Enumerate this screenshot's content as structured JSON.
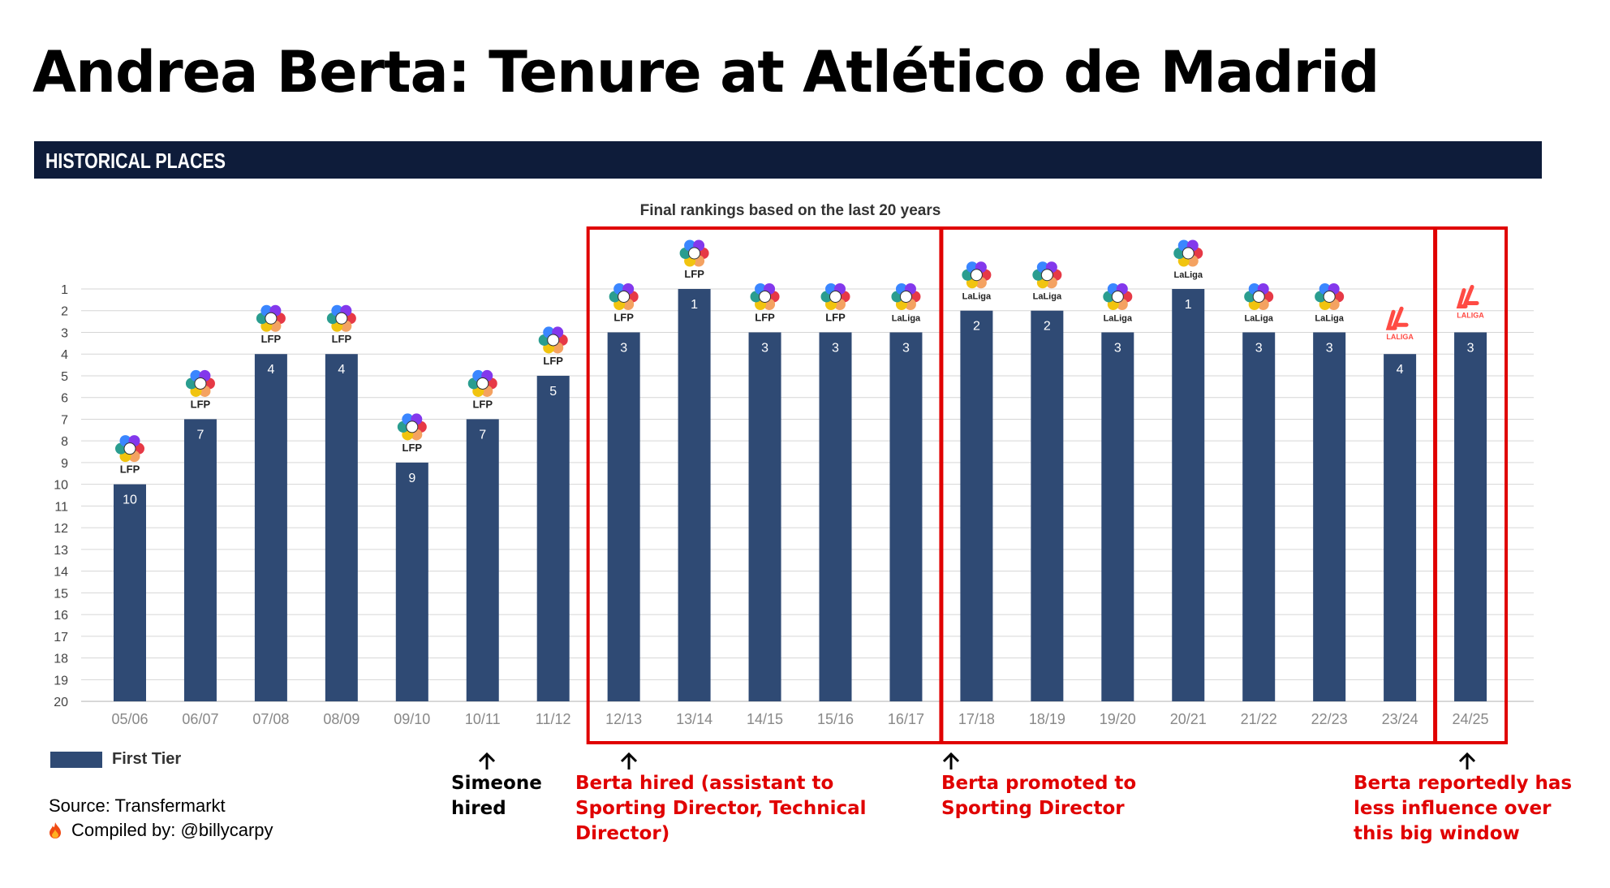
{
  "title": "Andrea Berta: Tenure at Atlético de Madrid",
  "header": "HISTORICAL PLACES",
  "chart_data": {
    "type": "bar",
    "title": "Final rankings based on the last 20 years",
    "categories": [
      "05/06",
      "06/07",
      "07/08",
      "08/09",
      "09/10",
      "10/11",
      "11/12",
      "12/13",
      "13/14",
      "14/15",
      "15/16",
      "16/17",
      "17/18",
      "18/19",
      "19/20",
      "20/21",
      "21/22",
      "22/23",
      "23/24",
      "24/25"
    ],
    "series": [
      {
        "name": "First Tier",
        "values": [
          10,
          7,
          4,
          4,
          9,
          7,
          5,
          3,
          1,
          3,
          3,
          3,
          2,
          2,
          3,
          1,
          3,
          3,
          4,
          3
        ]
      }
    ],
    "logos": [
      "LFP",
      "LFP",
      "LFP",
      "LFP",
      "LFP",
      "LFP",
      "LFP",
      "LFP",
      "LFP",
      "LFP",
      "LFP",
      "LaLiga",
      "LaLiga",
      "LaLiga",
      "LaLiga",
      "LaLiga",
      "LaLiga",
      "LaLiga",
      "LALIGA",
      "LALIGA"
    ],
    "y_ticks": [
      1,
      2,
      3,
      4,
      5,
      6,
      7,
      8,
      9,
      10,
      11,
      12,
      13,
      14,
      15,
      16,
      17,
      18,
      19,
      20
    ],
    "ylim": [
      1,
      20
    ],
    "y_inverted": true,
    "grid": true,
    "legend": "bottom-left",
    "bar_color": "#2f4a74",
    "highlight_color": "#e00000",
    "highlight_ranges": [
      [
        "12/13",
        "16/17"
      ],
      [
        "17/18",
        "23/24"
      ],
      [
        "24/25",
        "24/25"
      ]
    ]
  },
  "annotations": [
    {
      "at": "10/11",
      "text": "Simeone hired",
      "color": "#000000"
    },
    {
      "at": "12/13",
      "text": "Berta hired (assistant to Sporting Director, Technical Director)",
      "color": "#e00000"
    },
    {
      "at": "17/18",
      "text": "Berta promoted to Sporting Director",
      "color": "#e00000"
    },
    {
      "at": "24/25",
      "text": "Berta reportedly has less influence over this big window",
      "color": "#e00000"
    }
  ],
  "source": "Source: Transfermarkt",
  "compiled_by": "Compiled by: @billycarpy"
}
